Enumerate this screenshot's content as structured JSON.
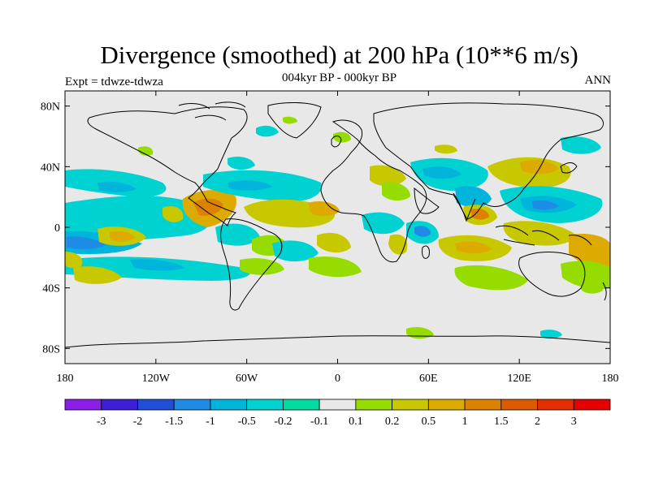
{
  "title": "Divergence (smoothed) at 200 hPa (10**6 m/s)",
  "subtitle": "004kyr BP - 000kyr BP",
  "experiment": "Expt = tdwze-tdwza",
  "season": "ANN",
  "map": {
    "projection": "cylindrical equidistant",
    "lon_range": [
      -180,
      180
    ],
    "lat_range": [
      -90,
      90
    ],
    "background_color": "#e8e8e8",
    "lat_ticks": [
      {
        "value": 80,
        "label": "80N"
      },
      {
        "value": 40,
        "label": "40N"
      },
      {
        "value": 0,
        "label": "0"
      },
      {
        "value": -40,
        "label": "40S"
      },
      {
        "value": -80,
        "label": "80S"
      }
    ],
    "lon_ticks": [
      {
        "value": -180,
        "label": "180"
      },
      {
        "value": -120,
        "label": "120W"
      },
      {
        "value": -60,
        "label": "60W"
      },
      {
        "value": 0,
        "label": "0"
      },
      {
        "value": 60,
        "label": "60E"
      },
      {
        "value": 120,
        "label": "120E"
      },
      {
        "value": 180,
        "label": "180"
      }
    ]
  },
  "colorbar": {
    "colors": [
      "#8a1ee6",
      "#3d1ed6",
      "#1e4fd6",
      "#1e8ce6",
      "#00b4dc",
      "#00d2d2",
      "#00dca0",
      "#e8e8e8",
      "#96dc00",
      "#c8c800",
      "#dcaa00",
      "#dc8200",
      "#dc5a00",
      "#e62d00",
      "#e60000"
    ],
    "labels": [
      "-3",
      "-2",
      "-1.5",
      "-1",
      "-0.5",
      "-0.2",
      "-0.1",
      "0.1",
      "0.2",
      "0.5",
      "1",
      "1.5",
      "2",
      "3"
    ]
  }
}
